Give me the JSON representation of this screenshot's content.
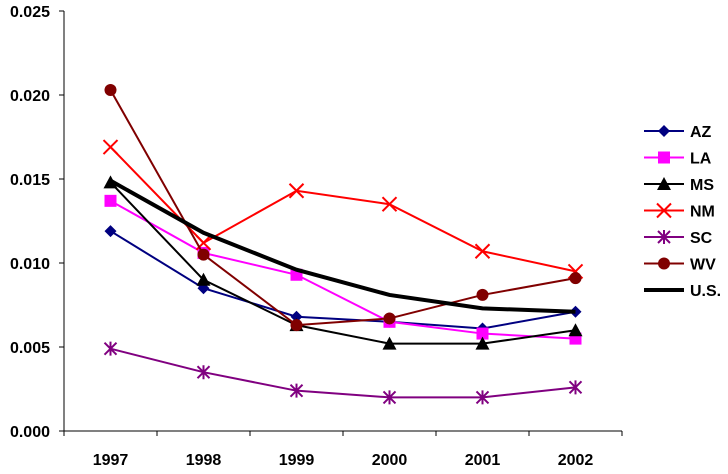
{
  "chart_data": {
    "type": "line",
    "title": "",
    "xlabel": "",
    "ylabel": "",
    "categories": [
      "1997",
      "1998",
      "1999",
      "2000",
      "2001",
      "2002"
    ],
    "ylim": [
      0,
      0.025
    ],
    "yticks": [
      "0.000",
      "0.005",
      "0.010",
      "0.015",
      "0.020",
      "0.025"
    ],
    "grid": false,
    "legend_position": "right",
    "series": [
      {
        "name": "AZ",
        "color": "#000080",
        "marker": "diamond",
        "values": [
          0.0119,
          0.0085,
          0.0068,
          0.0065,
          0.0061,
          0.0071
        ]
      },
      {
        "name": "LA",
        "color": "#FF00FF",
        "marker": "square",
        "values": [
          0.0137,
          0.0106,
          0.0093,
          0.0065,
          0.0058,
          0.0055
        ]
      },
      {
        "name": "MS",
        "color": "#000000",
        "marker": "triangle",
        "values": [
          0.0148,
          0.009,
          0.0063,
          0.0052,
          0.0052,
          0.006
        ]
      },
      {
        "name": "NM",
        "color": "#FF0000",
        "marker": "x",
        "values": [
          0.0169,
          0.0112,
          0.0143,
          0.0135,
          0.0107,
          0.0095
        ]
      },
      {
        "name": "SC",
        "color": "#800080",
        "marker": "star",
        "values": [
          0.0049,
          0.0035,
          0.0024,
          0.002,
          0.002,
          0.0026
        ]
      },
      {
        "name": "WV",
        "color": "#800000",
        "marker": "circle",
        "values": [
          0.0203,
          0.0105,
          0.0063,
          0.0067,
          0.0081,
          0.0091
        ]
      },
      {
        "name": "U.S.",
        "color": "#000000",
        "marker": "none",
        "thick": true,
        "values": [
          0.0149,
          0.0118,
          0.0096,
          0.0081,
          0.0073,
          0.0071
        ]
      }
    ]
  }
}
